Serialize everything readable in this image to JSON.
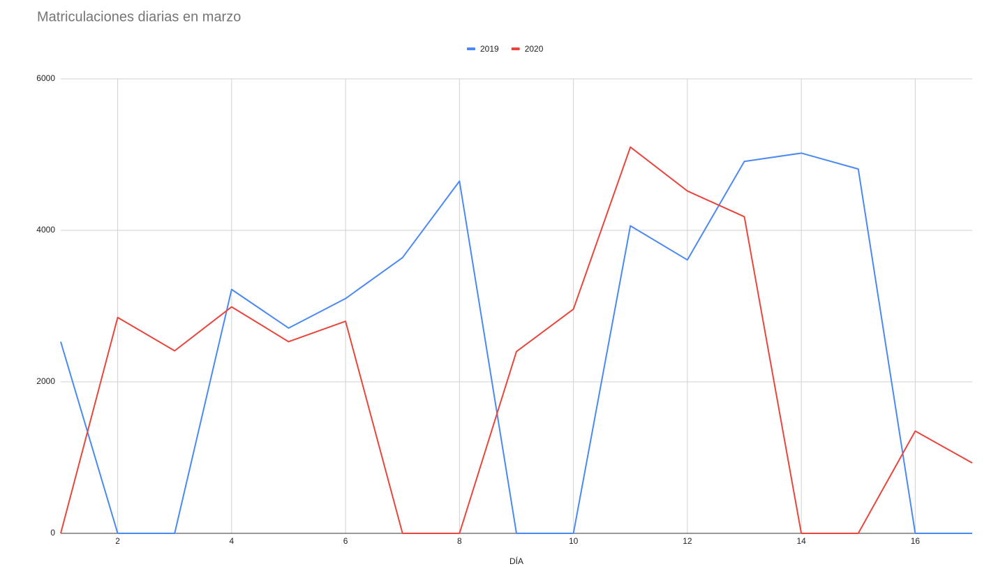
{
  "chart_data": {
    "type": "line",
    "title": "Matriculaciones diarias en marzo",
    "x_label": "DÍA",
    "x": [
      1,
      2,
      3,
      4,
      5,
      6,
      7,
      8,
      9,
      10,
      11,
      12,
      13,
      14,
      15,
      16,
      17
    ],
    "series": [
      {
        "name": "2019",
        "color": "#4a89f3",
        "values": [
          2530,
          0,
          0,
          3220,
          2710,
          3100,
          3640,
          4650,
          0,
          0,
          4060,
          3610,
          4910,
          5020,
          4810,
          0,
          0
        ]
      },
      {
        "name": "2020",
        "color": "#e8453c",
        "values": [
          0,
          2850,
          2410,
          2990,
          2530,
          2800,
          0,
          0,
          2400,
          2960,
          5100,
          4520,
          4180,
          0,
          0,
          1350,
          930
        ]
      }
    ],
    "xlim": [
      1,
      17
    ],
    "xticks": [
      2,
      4,
      6,
      8,
      10,
      12,
      14,
      16
    ],
    "ylim": [
      0,
      6000
    ],
    "yticks": [
      0,
      2000,
      4000,
      6000
    ],
    "grid": true,
    "legend": "top"
  }
}
